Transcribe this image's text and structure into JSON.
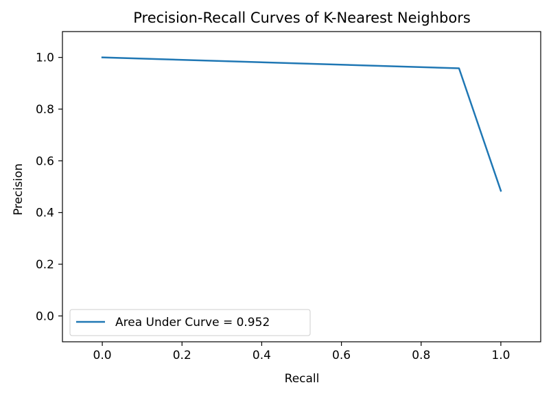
{
  "chart_data": {
    "type": "line",
    "title": "Precision-Recall Curves of K-Nearest Neighbors",
    "xlabel": "Recall",
    "ylabel": "Precision",
    "xlim": [
      -0.1,
      1.1
    ],
    "ylim": [
      -0.1,
      1.1
    ],
    "xticks": [
      0.0,
      0.2,
      0.4,
      0.6,
      0.8,
      1.0
    ],
    "xtick_labels": [
      "0.0",
      "0.2",
      "0.4",
      "0.6",
      "0.8",
      "1.0"
    ],
    "yticks": [
      0.0,
      0.2,
      0.4,
      0.6,
      0.8,
      1.0
    ],
    "ytick_labels": [
      "0.0",
      "0.2",
      "0.4",
      "0.6",
      "0.8",
      "1.0"
    ],
    "grid": false,
    "legend_position": "lower-left",
    "series": [
      {
        "name": "Area Under Curve = 0.952",
        "color": "#1f77b4",
        "x": [
          0.0,
          0.895,
          1.0
        ],
        "y": [
          1.0,
          0.958,
          0.484
        ]
      }
    ]
  }
}
